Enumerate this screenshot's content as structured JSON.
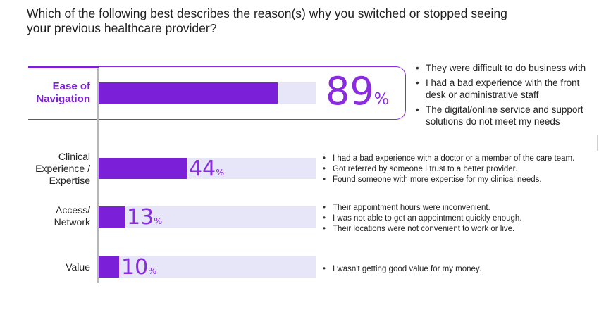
{
  "title": "Which of the following best describes the reason(s) why you switched or stopped seeing your previous healthcare provider?",
  "chart_data": {
    "type": "bar",
    "orientation": "horizontal",
    "xlim": [
      0,
      100
    ],
    "categories": [
      "Ease of Navigation",
      "Clinical Experience / Expertise",
      "Access/ Network",
      "Value"
    ],
    "values": [
      89,
      44,
      13,
      10
    ],
    "value_labels": [
      "89",
      "44",
      "13",
      "10"
    ],
    "unit": "%",
    "highlighted_category": "Ease of Navigation",
    "grid": false,
    "colors": {
      "bar": "#7b1fd8",
      "track": "#e6e6f8",
      "value_text": "#8a2be2",
      "highlight_frame": "#8a2be2"
    }
  },
  "rows": [
    {
      "label_lines": [
        "Ease of",
        "Navigation"
      ],
      "reasons": [
        "They were difficult to do business with",
        "I had a bad experience with the front desk or administrative staff",
        "The digital/online service and support solutions do not meet my needs"
      ]
    },
    {
      "label_lines": [
        "Clinical",
        "Experience /",
        "Expertise"
      ],
      "reasons": [
        "I had a bad experience with a doctor or a member of the care team.",
        "Got referred by someone I trust to a better provider.",
        "Found someone with more expertise for my clinical needs."
      ]
    },
    {
      "label_lines": [
        "Access/",
        "Network"
      ],
      "reasons": [
        "Their appointment hours were inconvenient.",
        "I was not able to get an appointment quickly enough.",
        "Their locations were not convenient to work or live."
      ]
    },
    {
      "label_lines": [
        "Value"
      ],
      "reasons": [
        "I wasn't getting good value for my money."
      ]
    }
  ]
}
